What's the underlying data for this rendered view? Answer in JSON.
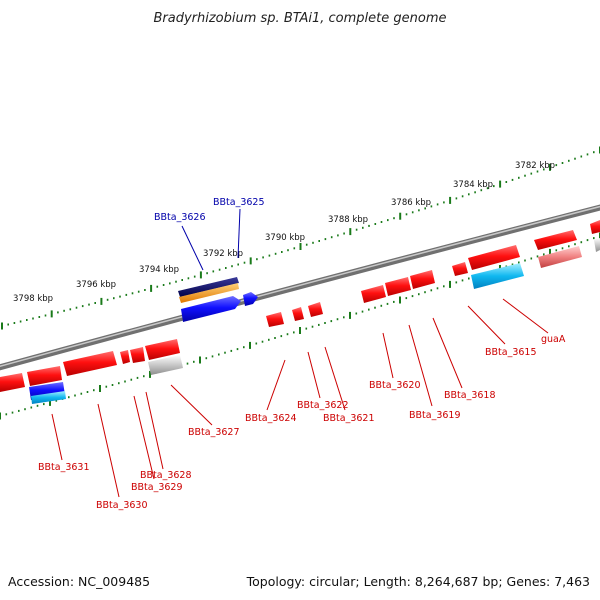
{
  "title": "Bradyrhizobium sp. BTAi1, complete genome",
  "footer": {
    "accession": "Accession: NC_009485",
    "topology": "Topology: circular; Length: 8,264,687 bp; Genes: 7,463"
  },
  "scale_labels": [
    "3782 kbp",
    "3784 kbp",
    "3786 kbp",
    "3788 kbp",
    "3790 kbp",
    "3792 kbp",
    "3794 kbp",
    "3796 kbp",
    "3798 kbp"
  ],
  "colors": {
    "backbone": "#8a8a8a",
    "tick": "#1a7a1a",
    "gene_red": "#e8000b",
    "gene_blue": "#1212e6",
    "label_red": "#cc0000",
    "label_blue": "#0000aa"
  },
  "gene_labels": {
    "outer": [
      "BBta_3626",
      "BBta_3625"
    ],
    "inner": [
      "guaA",
      "BBta_3615",
      "BBta_3618",
      "BBta_3619",
      "BBta_3620",
      "BBta_3621",
      "BBta_3622",
      "BBta_3624",
      "BBta_3627",
      "BBta_3628",
      "BBta_3629",
      "BBta_3630",
      "BBta_3631"
    ]
  }
}
